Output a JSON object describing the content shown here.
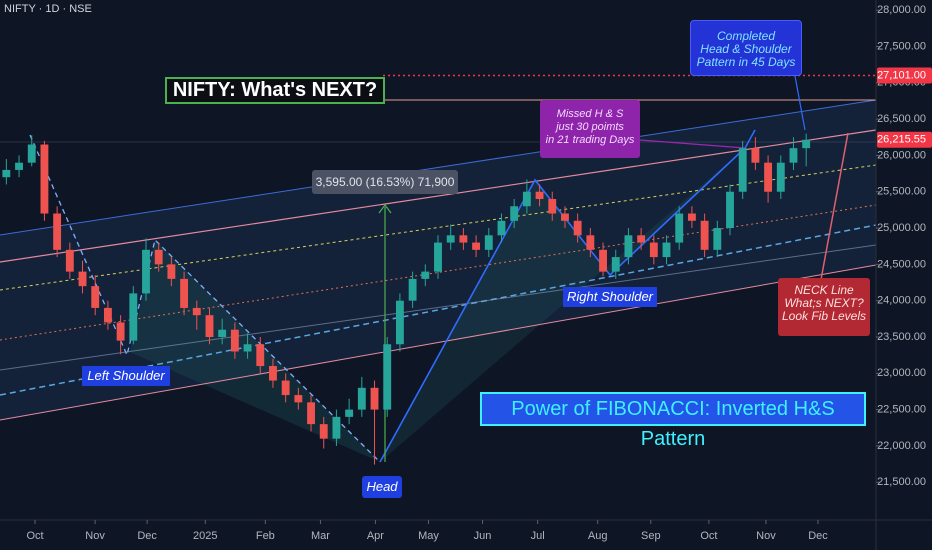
{
  "chart_data": {
    "type": "candlestick",
    "title": "NIFTY · 1D · NSE",
    "x": [
      -2,
      -1,
      0,
      1,
      2,
      3,
      4,
      5,
      6,
      7,
      8,
      9,
      10,
      11,
      12,
      13,
      14,
      15,
      16,
      17,
      18,
      19,
      20,
      21,
      22,
      23,
      24,
      25,
      26,
      27,
      28,
      29,
      30,
      31,
      32,
      33,
      34,
      35,
      36,
      37,
      38,
      39,
      40,
      41,
      42,
      43,
      44,
      45,
      46,
      47,
      48,
      49,
      50,
      51,
      52,
      53,
      54,
      55,
      56,
      57,
      58,
      59,
      60,
      61
    ],
    "ohlc": [
      [
        25700,
        25950,
        25600,
        25800
      ],
      [
        25800,
        26000,
        25700,
        25900
      ],
      [
        25900,
        26277,
        25850,
        26150
      ],
      [
        26150,
        26200,
        25100,
        25200
      ],
      [
        25200,
        25300,
        24600,
        24700
      ],
      [
        24700,
        24800,
        24300,
        24400
      ],
      [
        24400,
        24550,
        24100,
        24200
      ],
      [
        24200,
        24350,
        23800,
        23900
      ],
      [
        23900,
        24000,
        23600,
        23700
      ],
      [
        23700,
        23800,
        23263,
        23450
      ],
      [
        23450,
        24200,
        23400,
        24100
      ],
      [
        24100,
        24857,
        24000,
        24700
      ],
      [
        24700,
        24800,
        24400,
        24500
      ],
      [
        24500,
        24600,
        24200,
        24300
      ],
      [
        24300,
        24400,
        23800,
        23900
      ],
      [
        23900,
        24000,
        23600,
        23800
      ],
      [
        23800,
        23900,
        23400,
        23500
      ],
      [
        23500,
        23750,
        23400,
        23600
      ],
      [
        23600,
        23700,
        23200,
        23300
      ],
      [
        23300,
        23550,
        23200,
        23400
      ],
      [
        23400,
        23500,
        23000,
        23100
      ],
      [
        23100,
        23200,
        22800,
        22900
      ],
      [
        22900,
        23000,
        22600,
        22700
      ],
      [
        22700,
        22800,
        22500,
        22600
      ],
      [
        22600,
        22700,
        22200,
        22300
      ],
      [
        22300,
        22400,
        21964,
        22100
      ],
      [
        22100,
        22500,
        22000,
        22400
      ],
      [
        22400,
        22650,
        22300,
        22500
      ],
      [
        22500,
        22950,
        22400,
        22800
      ],
      [
        22800,
        22900,
        21743,
        22500
      ],
      [
        22500,
        23500,
        22400,
        23400
      ],
      [
        23400,
        24100,
        23300,
        24000
      ],
      [
        24000,
        24400,
        23900,
        24300
      ],
      [
        24300,
        24500,
        24200,
        24400
      ],
      [
        24400,
        24900,
        24300,
        24800
      ],
      [
        24800,
        25050,
        24700,
        24900
      ],
      [
        24900,
        25000,
        24700,
        24800
      ],
      [
        24800,
        24900,
        24600,
        24700
      ],
      [
        24700,
        25000,
        24600,
        24900
      ],
      [
        24900,
        25200,
        24800,
        25100
      ],
      [
        25100,
        25400,
        25000,
        25300
      ],
      [
        25300,
        25669,
        25200,
        25500
      ],
      [
        25500,
        25600,
        25300,
        25400
      ],
      [
        25400,
        25500,
        25100,
        25200
      ],
      [
        25200,
        25300,
        25000,
        25100
      ],
      [
        25100,
        25200,
        24800,
        24900
      ],
      [
        24900,
        25000,
        24600,
        24700
      ],
      [
        24700,
        24800,
        24337,
        24400
      ],
      [
        24400,
        24700,
        24300,
        24600
      ],
      [
        24600,
        25000,
        24500,
        24900
      ],
      [
        24900,
        25000,
        24700,
        24800
      ],
      [
        24800,
        24900,
        24500,
        24600
      ],
      [
        24600,
        24900,
        24500,
        24800
      ],
      [
        24800,
        25300,
        24700,
        25200
      ],
      [
        25200,
        25300,
        25000,
        25100
      ],
      [
        25100,
        25200,
        24600,
        24700
      ],
      [
        24700,
        25100,
        24600,
        25000
      ],
      [
        25000,
        25600,
        24900,
        25500
      ],
      [
        25500,
        26200,
        25400,
        26100
      ],
      [
        26100,
        26250,
        25800,
        25900
      ],
      [
        25900,
        26000,
        25350,
        25500
      ],
      [
        25500,
        26000,
        25400,
        25900
      ],
      [
        25900,
        26250,
        25800,
        26100
      ],
      [
        26100,
        26300,
        25850,
        26215.55
      ]
    ],
    "colors": {
      "up": "#26a69a",
      "down": "#ef5350"
    },
    "xlim": [
      -2.5,
      66.5
    ],
    "xticks": [
      {
        "value": 0.26,
        "label": "Oct"
      },
      {
        "value": 4.99,
        "label": "Nov"
      },
      {
        "value": 9.09,
        "label": "Dec"
      },
      {
        "value": 13.67,
        "label": "2025"
      },
      {
        "value": 18.4,
        "label": "Feb"
      },
      {
        "value": 22.74,
        "label": "Mar"
      },
      {
        "value": 27.07,
        "label": "Apr"
      },
      {
        "value": 31.25,
        "label": "May"
      },
      {
        "value": 35.51,
        "label": "Jun"
      },
      {
        "value": 39.85,
        "label": "Jul"
      },
      {
        "value": 44.58,
        "label": "Aug"
      },
      {
        "value": 48.76,
        "label": "Sep"
      },
      {
        "value": 53.34,
        "label": "Oct"
      },
      {
        "value": 57.83,
        "label": "Nov"
      },
      {
        "value": 61.93,
        "label": "Dec"
      }
    ],
    "ylim": [
      20980,
      28140
    ],
    "yticks": [
      {
        "value": 21500,
        "label": "21,500.00"
      },
      {
        "value": 22000,
        "label": "22,000.00"
      },
      {
        "value": 22500,
        "label": "22,500.00"
      },
      {
        "value": 23000,
        "label": "23,000.00"
      },
      {
        "value": 23500,
        "label": "23,500.00"
      },
      {
        "value": 24000,
        "label": "24,000.00"
      },
      {
        "value": 24500,
        "label": "24,500.00"
      },
      {
        "value": 25000,
        "label": "25,000.00"
      },
      {
        "value": 25500,
        "label": "25,500.00"
      },
      {
        "value": 26000,
        "label": "26,000.00"
      },
      {
        "value": 26500,
        "label": "26,500.00"
      },
      {
        "value": 27000,
        "label": "27,000.00"
      },
      {
        "value": 27500,
        "label": "27,500.00"
      },
      {
        "value": 28000,
        "label": "28,000.00"
      }
    ],
    "price_tags": [
      {
        "value": 27101,
        "label": "27,101.00",
        "color": "#f23645"
      },
      {
        "value": 26215.55,
        "label": "26,215.55",
        "color": "#f23645"
      }
    ],
    "annotations": {
      "headline": "NIFTY: What's NEXT?",
      "completed": [
        "Completed",
        "Head & Shoulder",
        "Pattern in 45 Days"
      ],
      "missed": [
        "Missed H & S",
        "just 30 poimts",
        "in 21 trading Days"
      ],
      "measure": "3,595.00 (16.53%) 71,900",
      "left_shoulder": "Left Shoulder",
      "right_shoulder": "Right Shoulder",
      "head": "Head",
      "neck": [
        "NECK Line",
        "What;s NEXT?",
        "Look Fib Levels"
      ],
      "fibonacci": "Power of FIBONACCI: Inverted H&S Pattern"
    }
  }
}
